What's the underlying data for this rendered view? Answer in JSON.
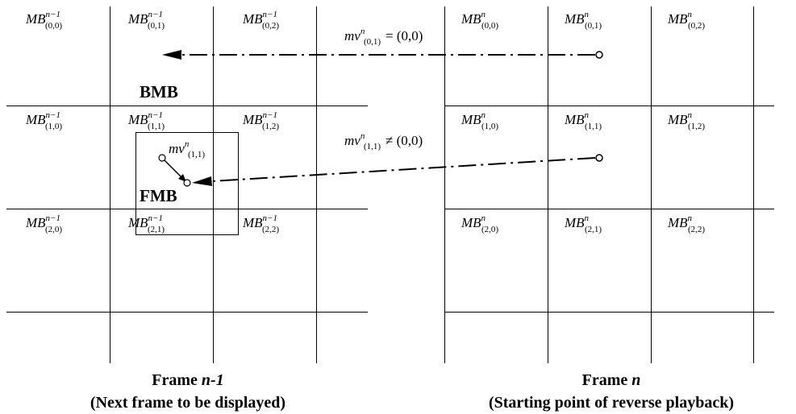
{
  "left_frame": {
    "cells": [
      {
        "sub": "(0,0)",
        "sup": "n−1"
      },
      {
        "sub": "(0,1)",
        "sup": "n−1"
      },
      {
        "sub": "(0,2)",
        "sup": "n−1"
      },
      {
        "sub": "(1,0)",
        "sup": "n−1"
      },
      {
        "sub": "(1,1)",
        "sup": "n−1"
      },
      {
        "sub": "(1,2)",
        "sup": "n−1"
      },
      {
        "sub": "(2,0)",
        "sup": "n−1"
      },
      {
        "sub": "(2,1)",
        "sup": "n−1"
      },
      {
        "sub": "(2,2)",
        "sup": "n−1"
      }
    ],
    "caption_title": "Frame ",
    "caption_title_italic": "n-1",
    "caption_sub": "(Next frame to be displayed)"
  },
  "right_frame": {
    "cells": [
      {
        "sub": "(0,0)",
        "sup": "n"
      },
      {
        "sub": "(0,1)",
        "sup": "n"
      },
      {
        "sub": "(0,2)",
        "sup": "n"
      },
      {
        "sub": "(1,0)",
        "sup": "n"
      },
      {
        "sub": "(1,1)",
        "sup": "n"
      },
      {
        "sub": "(1,2)",
        "sup": "n"
      },
      {
        "sub": "(2,0)",
        "sup": "n"
      },
      {
        "sub": "(2,1)",
        "sup": "n"
      },
      {
        "sub": "(2,2)",
        "sup": "n"
      }
    ],
    "caption_title": "Frame ",
    "caption_title_italic": "n",
    "caption_sub": "(Starting point of reverse playback)"
  },
  "mb_prefix": "MB",
  "labels": {
    "bmb": "BMB",
    "fmb": "FMB"
  },
  "mv_top": {
    "base": "mv",
    "sup": "n",
    "sub": "(0,1)",
    "relation": "= (0,0)"
  },
  "mv_mid": {
    "base": "mv",
    "sup": "n",
    "sub": "(1,1)",
    "relation": "≠ (0,0)"
  },
  "mv_local": {
    "base": "mv",
    "sup": "n",
    "sub": "(1,1)"
  }
}
